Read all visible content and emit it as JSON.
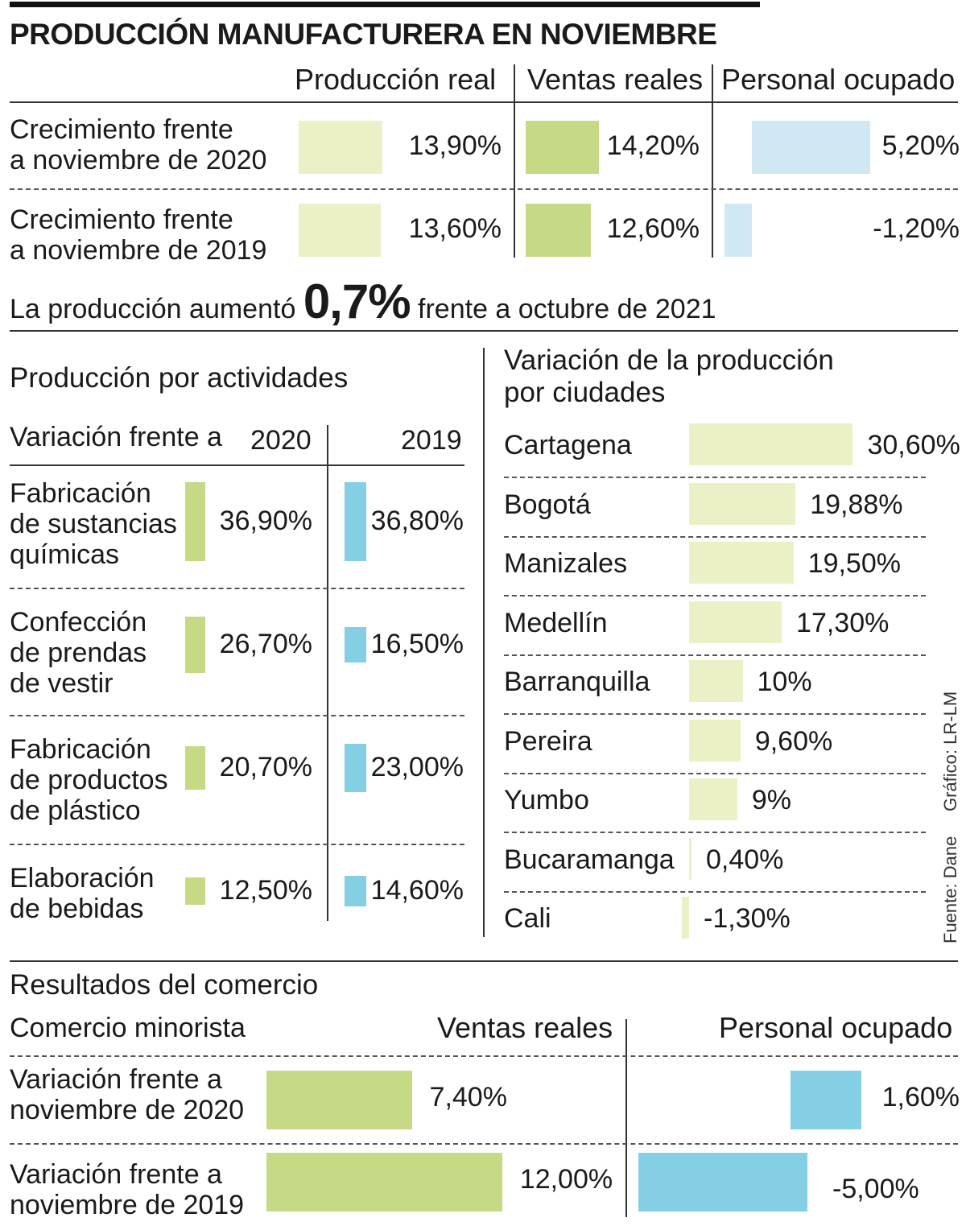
{
  "title": "PRODUCCIÓN MANUFACTURERA EN NOVIEMBRE",
  "colors": {
    "light_green": "#ecf0c6",
    "green": "#c6d985",
    "light_blue": "#cfe8f2",
    "blue": "#85cfe4"
  },
  "top": {
    "headers": [
      "Producción real",
      "Ventas reales",
      "Personal ocupado"
    ],
    "rows": [
      {
        "label": "Crecimiento frente\na noviembre de 2020"
      },
      {
        "label": "Crecimiento frente\na noviembre de 2019"
      }
    ],
    "highlight": {
      "prefix": "La producción aumentó",
      "value": "0,7%",
      "suffix": "frente a octubre de 2021"
    }
  },
  "activities": {
    "title": "Producción por actividades",
    "subtitle": "Variación frente a",
    "rows": [
      {
        "label": "Fabricación\nde sustancias\nquímicas"
      },
      {
        "label": "Confección\nde prendas\nde vestir"
      },
      {
        "label": "Fabricación\nde productos\nde plástico"
      },
      {
        "label": "Elaboración\nde bebidas"
      }
    ]
  },
  "cities": {
    "title_line1": "Variación de la producción",
    "title_line2": "por ciudades"
  },
  "commerce": {
    "title": "Resultados del comercio",
    "subtitle": "Comercio minorista",
    "headers": [
      "Ventas reales",
      "Personal ocupado"
    ],
    "rows": [
      {
        "label": "Variación frente a\nnoviembre de 2020"
      },
      {
        "label": "Variación frente a\nnoviembre de 2019"
      }
    ]
  },
  "credits": {
    "graphic": "Gráfico: LR-LM",
    "source": "Fuente: Dane"
  },
  "chart_data": [
    {
      "type": "bar",
      "categories": [
        "Crecimiento frente a noviembre de 2020",
        "Crecimiento frente a noviembre de 2019"
      ],
      "series": [
        {
          "name": "Producción real",
          "values": [
            13.9,
            13.6
          ],
          "labels": [
            "13,90%",
            "13,60%"
          ]
        },
        {
          "name": "Ventas reales",
          "values": [
            14.2,
            12.6
          ],
          "labels": [
            "14,20%",
            "12,60%"
          ]
        },
        {
          "name": "Personal ocupado",
          "values": [
            5.2,
            -1.2
          ],
          "labels": [
            "5,20%",
            "-1,20%"
          ]
        }
      ]
    },
    {
      "type": "bar",
      "title": "Producción por actividades",
      "categories": [
        "Fabricación de sustancias químicas",
        "Confección de prendas de vestir",
        "Fabricación de productos de plástico",
        "Elaboración de bebidas"
      ],
      "series": [
        {
          "name": "2020",
          "values": [
            36.9,
            26.7,
            20.7,
            12.5
          ],
          "labels": [
            "36,90%",
            "26,70%",
            "20,70%",
            "12,50%"
          ]
        },
        {
          "name": "2019",
          "values": [
            36.8,
            16.5,
            23.0,
            14.6
          ],
          "labels": [
            "36,80%",
            "16,50%",
            "23,00%",
            "14,60%"
          ]
        }
      ]
    },
    {
      "type": "bar",
      "title": "Variación de la producción por ciudades",
      "categories": [
        "Cartagena",
        "Bogotá",
        "Manizales",
        "Medellín",
        "Barranquilla",
        "Pereira",
        "Yumbo",
        "Bucaramanga",
        "Cali"
      ],
      "values": [
        30.6,
        19.88,
        19.5,
        17.3,
        10,
        9.6,
        9,
        0.4,
        -1.3
      ],
      "labels": [
        "30,60%",
        "19,88%",
        "19,50%",
        "17,30%",
        "10%",
        "9,60%",
        "9%",
        "0,40%",
        "-1,30%"
      ]
    },
    {
      "type": "bar",
      "title": "Resultados del comercio",
      "categories": [
        "Variación frente a noviembre de 2020",
        "Variación frente a noviembre de 2019"
      ],
      "series": [
        {
          "name": "Ventas reales",
          "values": [
            7.4,
            12.0
          ],
          "labels": [
            "7,40%",
            "12,00%"
          ]
        },
        {
          "name": "Personal ocupado",
          "values": [
            1.6,
            -5.0
          ],
          "labels": [
            "1,60%",
            "-5,00%"
          ]
        }
      ]
    }
  ]
}
